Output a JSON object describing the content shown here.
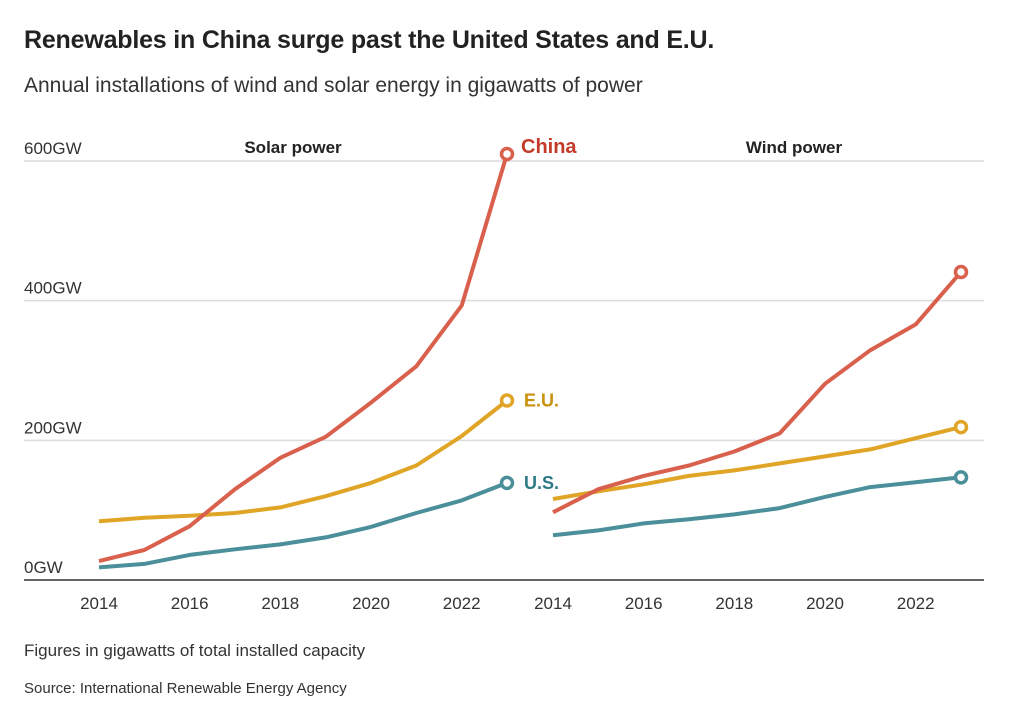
{
  "header": {
    "title": "Renewables in China surge past the United States and E.U.",
    "subtitle": "Annual installations of wind and solar energy in gigawatts of power"
  },
  "footer": {
    "note": "Figures in gigawatts of total installed capacity",
    "source": "Source: International Renewable Energy Agency"
  },
  "colors": {
    "China": "#d9604c",
    "E.U.": "#e0a526",
    "U.S.": "#4a8f99",
    "China_label": "#c33a2a",
    "E.U._label": "#c9900c",
    "U.S._label": "#2c7a86",
    "grid": "#dcdcdc",
    "axis": "#333333"
  },
  "chart_data": [
    {
      "type": "line",
      "title": "Solar power",
      "xlabel": "",
      "ylabel": "",
      "x": [
        2014,
        2015,
        2016,
        2017,
        2018,
        2019,
        2020,
        2021,
        2022,
        2023
      ],
      "xticks": [
        "2014",
        "2016",
        "2018",
        "2020",
        "2022"
      ],
      "yticks": [
        "0GW",
        "200GW",
        "400GW",
        "600GW"
      ],
      "ylim": [
        0,
        600
      ],
      "grid": true,
      "series": [
        {
          "name": "China",
          "values": [
            27,
            43,
            77,
            130,
            175,
            205,
            254,
            306,
            393,
            610
          ]
        },
        {
          "name": "E.U.",
          "values": [
            84,
            89,
            92,
            96,
            104,
            120,
            139,
            164,
            206,
            257
          ]
        },
        {
          "name": "U.S.",
          "values": [
            18,
            23,
            36,
            44,
            51,
            61,
            76,
            96,
            114,
            139
          ]
        }
      ],
      "annotations": [
        "China",
        "E.U.",
        "U.S."
      ]
    },
    {
      "type": "line",
      "title": "Wind power",
      "xlabel": "",
      "ylabel": "",
      "x": [
        2014,
        2015,
        2016,
        2017,
        2018,
        2019,
        2020,
        2021,
        2022,
        2023
      ],
      "xticks": [
        "2014",
        "2016",
        "2018",
        "2020",
        "2022"
      ],
      "ylim": [
        0,
        600
      ],
      "grid": true,
      "series": [
        {
          "name": "China",
          "values": [
            97,
            130,
            149,
            164,
            184,
            210,
            281,
            329,
            366,
            441
          ]
        },
        {
          "name": "E.U.",
          "values": [
            116,
            127,
            137,
            149,
            157,
            167,
            177,
            187,
            203,
            219
          ]
        },
        {
          "name": "U.S.",
          "values": [
            64,
            71,
            81,
            87,
            94,
            103,
            119,
            133,
            140,
            147
          ]
        }
      ]
    }
  ]
}
